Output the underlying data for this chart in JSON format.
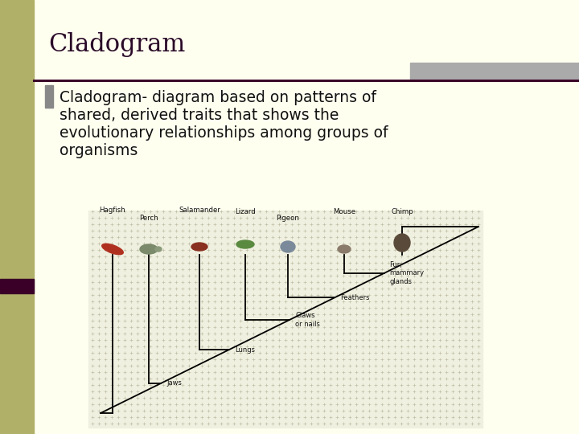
{
  "title": "Cladogram",
  "title_color": "#2a0a28",
  "title_fontsize": 22,
  "bg_color": "#fffff0",
  "left_bar_color": "#b0b068",
  "separator_color": "#3a0028",
  "separator2_color": "#aaaaaa",
  "bullet_color": "#888888",
  "body_lines": [
    "Cladogram- diagram based on patterns of",
    "shared, derived traits that shows the",
    "evolutionary relationships among groups of",
    "organisms"
  ],
  "body_fontsize": 13.5,
  "body_color": "#111111",
  "line_color": "#000000",
  "diagram_bg": "#f0f0e0",
  "dot_color": "#c0c0a8",
  "animals": [
    "Hagfish",
    "Perch",
    "Salamander",
    "Lizard",
    "Pigeon",
    "Mouse",
    "Chimp"
  ],
  "trait_labels": [
    "Jaws",
    "Lungs",
    "Claws\nor nails",
    "Feathers",
    "Fur;\nmammary\nglands"
  ],
  "left_bar_width": 0.058
}
